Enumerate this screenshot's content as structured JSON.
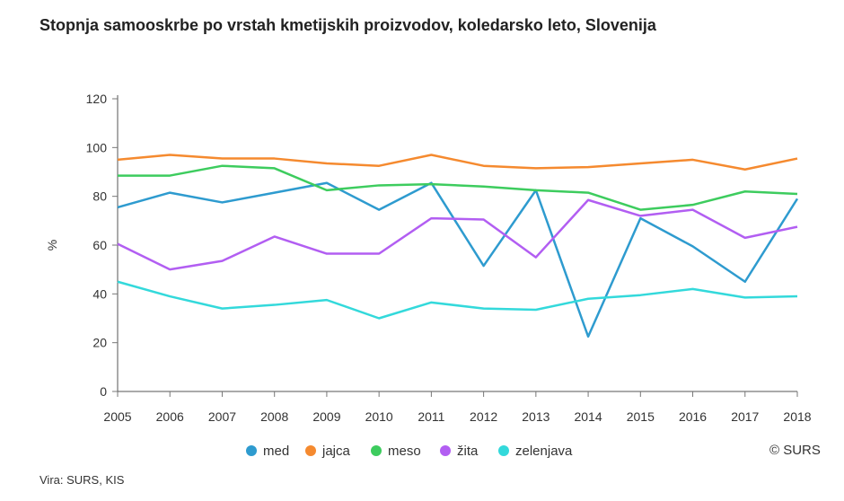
{
  "chart_data": {
    "type": "line",
    "title": "Stopnja samooskrbe po vrstah kmetijskih proizvodov, koledarsko leto, Slovenija",
    "ylabel": "%",
    "xlabel": "",
    "ylim": [
      0,
      120
    ],
    "yticks": [
      0,
      20,
      40,
      60,
      80,
      100,
      120
    ],
    "grid": false,
    "legend": "bottom",
    "x": [
      "2005",
      "2006",
      "2007",
      "2008",
      "2009",
      "2010",
      "2011",
      "2012",
      "2013",
      "2014",
      "2015",
      "2016",
      "2017",
      "2018"
    ],
    "series": [
      {
        "name": "med",
        "color": "#2e9bcf",
        "values": [
          75.5,
          81.5,
          77.5,
          81.5,
          85.5,
          74.5,
          85.5,
          51.5,
          82.5,
          22.5,
          71,
          59.5,
          45,
          79
        ]
      },
      {
        "name": "jajca",
        "color": "#f58a2f",
        "values": [
          95,
          97,
          95.5,
          95.5,
          93.5,
          92.5,
          97,
          92.5,
          91.5,
          92,
          93.5,
          95,
          91,
          95.5
        ]
      },
      {
        "name": "meso",
        "color": "#3dcc5e",
        "values": [
          88.5,
          88.5,
          92.5,
          91.5,
          82.5,
          84.5,
          85,
          84,
          82.5,
          81.5,
          74.5,
          76.5,
          82,
          81
        ]
      },
      {
        "name": "žita",
        "color": "#b25ef2",
        "values": [
          60.5,
          50,
          53.5,
          63.5,
          56.5,
          56.5,
          71,
          70.5,
          55,
          78.5,
          72,
          74.5,
          63,
          67.5
        ]
      },
      {
        "name": "zelenjava",
        "color": "#33d9db",
        "values": [
          45,
          39,
          34,
          35.5,
          37.5,
          30,
          36.5,
          34,
          33.5,
          38,
          39.5,
          42,
          38.5,
          39
        ]
      }
    ]
  },
  "source": "Vira: SURS, KIS",
  "copyright": "© SURS"
}
